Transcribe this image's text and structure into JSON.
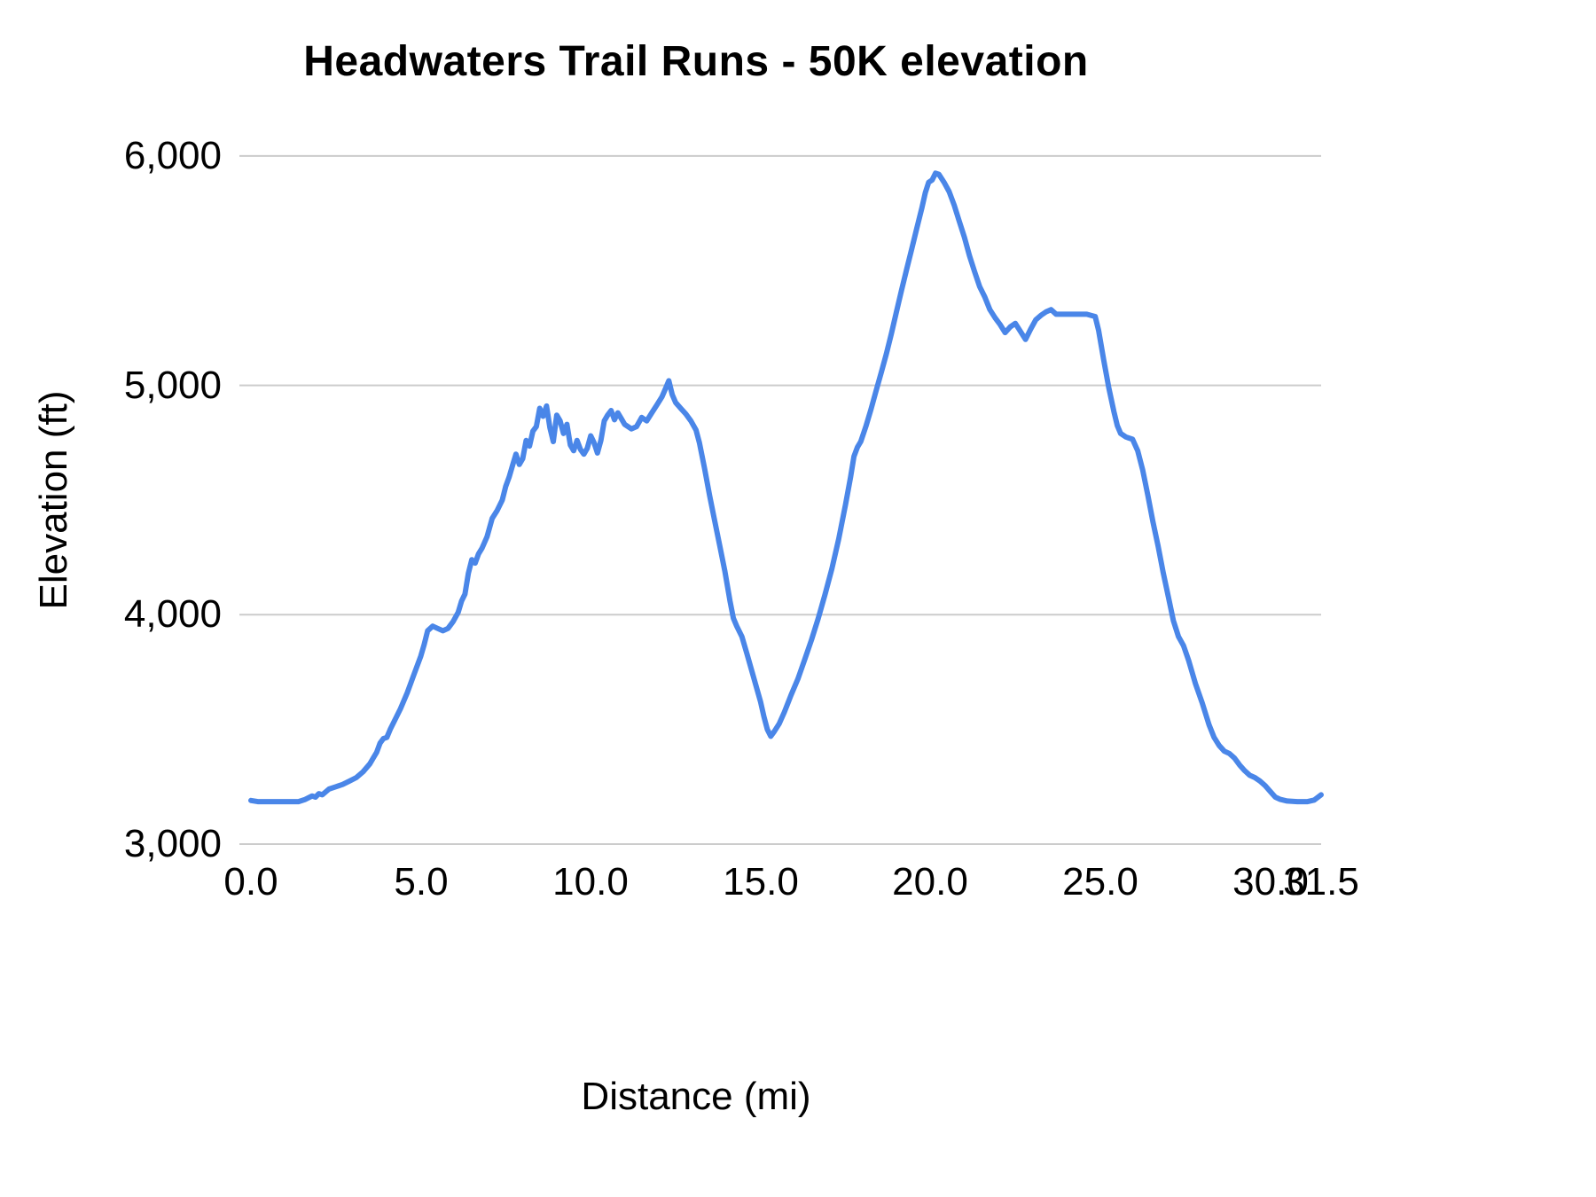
{
  "chart_data": {
    "type": "line",
    "title": "Headwaters Trail Runs - 50K elevation",
    "xlabel": "Distance (mi)",
    "ylabel": "Elevation (ft)",
    "xlim": [
      0,
      31.5
    ],
    "ylim": [
      3000,
      6100
    ],
    "x_ticks": [
      0,
      5,
      10,
      15,
      20,
      25,
      30,
      31.5
    ],
    "x_tick_labels": [
      "0.0",
      "5.0",
      "10.0",
      "15.0",
      "20.0",
      "25.0",
      "30.0",
      "31.5"
    ],
    "y_ticks": [
      3000,
      4000,
      5000,
      6000
    ],
    "y_tick_labels": [
      "3,000",
      "4,000",
      "5,000",
      "6,000"
    ],
    "grid": "horizontal",
    "legend": "none",
    "line_color": "#4a86e8",
    "grid_color": "#cccccc",
    "text_color": "#000000",
    "series_name": "50K elevation",
    "points": [
      [
        0,
        3190
      ],
      [
        0.2,
        3185
      ],
      [
        0.5,
        3185
      ],
      [
        0.8,
        3185
      ],
      [
        1.1,
        3185
      ],
      [
        1.4,
        3185
      ],
      [
        1.6,
        3195
      ],
      [
        1.8,
        3210
      ],
      [
        1.9,
        3205
      ],
      [
        2.0,
        3220
      ],
      [
        2.1,
        3215
      ],
      [
        2.3,
        3240
      ],
      [
        2.5,
        3250
      ],
      [
        2.7,
        3260
      ],
      [
        2.9,
        3275
      ],
      [
        3.1,
        3290
      ],
      [
        3.3,
        3315
      ],
      [
        3.5,
        3350
      ],
      [
        3.6,
        3375
      ],
      [
        3.7,
        3400
      ],
      [
        3.8,
        3440
      ],
      [
        3.9,
        3460
      ],
      [
        4.0,
        3465
      ],
      [
        4.1,
        3500
      ],
      [
        4.2,
        3530
      ],
      [
        4.4,
        3590
      ],
      [
        4.6,
        3660
      ],
      [
        4.8,
        3740
      ],
      [
        5.0,
        3820
      ],
      [
        5.1,
        3870
      ],
      [
        5.2,
        3930
      ],
      [
        5.35,
        3950
      ],
      [
        5.5,
        3940
      ],
      [
        5.65,
        3930
      ],
      [
        5.8,
        3940
      ],
      [
        5.95,
        3970
      ],
      [
        6.1,
        4010
      ],
      [
        6.2,
        4060
      ],
      [
        6.3,
        4090
      ],
      [
        6.4,
        4180
      ],
      [
        6.5,
        4240
      ],
      [
        6.6,
        4225
      ],
      [
        6.7,
        4265
      ],
      [
        6.8,
        4290
      ],
      [
        6.95,
        4340
      ],
      [
        7.1,
        4420
      ],
      [
        7.25,
        4455
      ],
      [
        7.4,
        4500
      ],
      [
        7.5,
        4560
      ],
      [
        7.6,
        4600
      ],
      [
        7.7,
        4650
      ],
      [
        7.8,
        4700
      ],
      [
        7.9,
        4655
      ],
      [
        8.0,
        4680
      ],
      [
        8.1,
        4760
      ],
      [
        8.2,
        4735
      ],
      [
        8.3,
        4800
      ],
      [
        8.4,
        4820
      ],
      [
        8.5,
        4900
      ],
      [
        8.6,
        4865
      ],
      [
        8.7,
        4910
      ],
      [
        8.8,
        4815
      ],
      [
        8.9,
        4755
      ],
      [
        9.0,
        4870
      ],
      [
        9.1,
        4845
      ],
      [
        9.2,
        4790
      ],
      [
        9.3,
        4830
      ],
      [
        9.4,
        4740
      ],
      [
        9.5,
        4715
      ],
      [
        9.6,
        4760
      ],
      [
        9.7,
        4720
      ],
      [
        9.8,
        4700
      ],
      [
        9.9,
        4725
      ],
      [
        10.0,
        4780
      ],
      [
        10.1,
        4750
      ],
      [
        10.2,
        4705
      ],
      [
        10.3,
        4760
      ],
      [
        10.4,
        4845
      ],
      [
        10.5,
        4870
      ],
      [
        10.6,
        4890
      ],
      [
        10.7,
        4850
      ],
      [
        10.8,
        4880
      ],
      [
        10.9,
        4855
      ],
      [
        11.0,
        4830
      ],
      [
        11.2,
        4810
      ],
      [
        11.35,
        4820
      ],
      [
        11.5,
        4860
      ],
      [
        11.65,
        4845
      ],
      [
        11.8,
        4880
      ],
      [
        11.95,
        4915
      ],
      [
        12.1,
        4950
      ],
      [
        12.2,
        4985
      ],
      [
        12.3,
        5020
      ],
      [
        12.4,
        4960
      ],
      [
        12.5,
        4925
      ],
      [
        12.65,
        4900
      ],
      [
        12.8,
        4875
      ],
      [
        12.95,
        4845
      ],
      [
        13.1,
        4805
      ],
      [
        13.2,
        4750
      ],
      [
        13.35,
        4640
      ],
      [
        13.5,
        4520
      ],
      [
        13.65,
        4410
      ],
      [
        13.8,
        4300
      ],
      [
        13.95,
        4190
      ],
      [
        14.1,
        4060
      ],
      [
        14.2,
        3985
      ],
      [
        14.3,
        3950
      ],
      [
        14.45,
        3905
      ],
      [
        14.6,
        3830
      ],
      [
        14.8,
        3725
      ],
      [
        15.0,
        3620
      ],
      [
        15.1,
        3555
      ],
      [
        15.2,
        3500
      ],
      [
        15.3,
        3470
      ],
      [
        15.4,
        3490
      ],
      [
        15.55,
        3525
      ],
      [
        15.7,
        3575
      ],
      [
        15.9,
        3650
      ],
      [
        16.1,
        3720
      ],
      [
        16.3,
        3805
      ],
      [
        16.5,
        3890
      ],
      [
        16.7,
        3985
      ],
      [
        16.9,
        4090
      ],
      [
        17.1,
        4200
      ],
      [
        17.3,
        4330
      ],
      [
        17.5,
        4480
      ],
      [
        17.65,
        4600
      ],
      [
        17.75,
        4690
      ],
      [
        17.85,
        4730
      ],
      [
        17.95,
        4755
      ],
      [
        18.1,
        4820
      ],
      [
        18.25,
        4895
      ],
      [
        18.4,
        4975
      ],
      [
        18.55,
        5055
      ],
      [
        18.7,
        5135
      ],
      [
        18.85,
        5225
      ],
      [
        19.0,
        5320
      ],
      [
        19.15,
        5415
      ],
      [
        19.3,
        5505
      ],
      [
        19.45,
        5595
      ],
      [
        19.6,
        5685
      ],
      [
        19.75,
        5775
      ],
      [
        19.85,
        5840
      ],
      [
        19.95,
        5885
      ],
      [
        20.05,
        5895
      ],
      [
        20.15,
        5925
      ],
      [
        20.25,
        5920
      ],
      [
        20.4,
        5885
      ],
      [
        20.55,
        5845
      ],
      [
        20.7,
        5785
      ],
      [
        20.85,
        5715
      ],
      [
        21.0,
        5645
      ],
      [
        21.15,
        5565
      ],
      [
        21.3,
        5495
      ],
      [
        21.45,
        5430
      ],
      [
        21.6,
        5385
      ],
      [
        21.75,
        5330
      ],
      [
        21.9,
        5295
      ],
      [
        22.05,
        5265
      ],
      [
        22.2,
        5230
      ],
      [
        22.35,
        5255
      ],
      [
        22.5,
        5270
      ],
      [
        22.65,
        5235
      ],
      [
        22.8,
        5200
      ],
      [
        22.95,
        5245
      ],
      [
        23.1,
        5285
      ],
      [
        23.25,
        5305
      ],
      [
        23.4,
        5320
      ],
      [
        23.55,
        5330
      ],
      [
        23.7,
        5310
      ],
      [
        23.9,
        5310
      ],
      [
        24.1,
        5310
      ],
      [
        24.35,
        5310
      ],
      [
        24.6,
        5310
      ],
      [
        24.85,
        5300
      ],
      [
        24.95,
        5240
      ],
      [
        25.1,
        5110
      ],
      [
        25.25,
        4990
      ],
      [
        25.4,
        4885
      ],
      [
        25.5,
        4825
      ],
      [
        25.6,
        4790
      ],
      [
        25.75,
        4775
      ],
      [
        25.95,
        4765
      ],
      [
        26.1,
        4715
      ],
      [
        26.25,
        4630
      ],
      [
        26.4,
        4520
      ],
      [
        26.55,
        4405
      ],
      [
        26.7,
        4300
      ],
      [
        26.85,
        4185
      ],
      [
        27.0,
        4080
      ],
      [
        27.15,
        3975
      ],
      [
        27.3,
        3905
      ],
      [
        27.45,
        3865
      ],
      [
        27.6,
        3800
      ],
      [
        27.8,
        3700
      ],
      [
        28.0,
        3615
      ],
      [
        28.2,
        3520
      ],
      [
        28.35,
        3465
      ],
      [
        28.5,
        3430
      ],
      [
        28.65,
        3405
      ],
      [
        28.8,
        3395
      ],
      [
        28.95,
        3375
      ],
      [
        29.1,
        3345
      ],
      [
        29.25,
        3320
      ],
      [
        29.4,
        3300
      ],
      [
        29.55,
        3290
      ],
      [
        29.7,
        3275
      ],
      [
        29.85,
        3255
      ],
      [
        30.0,
        3230
      ],
      [
        30.15,
        3205
      ],
      [
        30.3,
        3195
      ],
      [
        30.5,
        3188
      ],
      [
        30.8,
        3185
      ],
      [
        31.1,
        3185
      ],
      [
        31.3,
        3192
      ],
      [
        31.5,
        3215
      ]
    ]
  }
}
